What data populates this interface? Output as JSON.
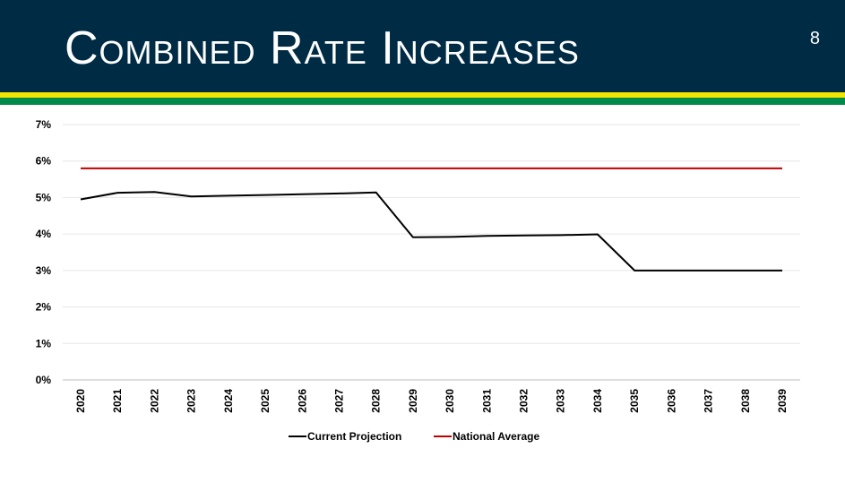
{
  "slide": {
    "title": "Combined Rate Increases",
    "number": "8"
  },
  "colors": {
    "header_bg": "#002b45",
    "stripe_yellow": "#f2e600",
    "stripe_green": "#008a4b",
    "current_projection": "#000000",
    "national_average": "#c00000",
    "grid": "#e6e6e6"
  },
  "chart_data": {
    "type": "line",
    "title": "",
    "xlabel": "",
    "ylabel": "",
    "ylim": [
      0,
      7
    ],
    "yticks": [
      "0%",
      "1%",
      "2%",
      "3%",
      "4%",
      "5%",
      "6%",
      "7%"
    ],
    "categories": [
      "2020",
      "2021",
      "2022",
      "2023",
      "2024",
      "2025",
      "2026",
      "2027",
      "2028",
      "2029",
      "2030",
      "2031",
      "2032",
      "2033",
      "2034",
      "2035",
      "2036",
      "2037",
      "2038",
      "2039"
    ],
    "series": [
      {
        "name": "Current Projection",
        "color": "#000000",
        "values": [
          4.95,
          5.13,
          5.15,
          5.03,
          5.05,
          5.07,
          5.09,
          5.11,
          5.14,
          3.91,
          3.92,
          3.95,
          3.96,
          3.97,
          3.99,
          3.0,
          3.0,
          3.0,
          3.0,
          3.0
        ]
      },
      {
        "name": "National Average",
        "color": "#c00000",
        "values": [
          5.8,
          5.8,
          5.8,
          5.8,
          5.8,
          5.8,
          5.8,
          5.8,
          5.8,
          5.8,
          5.8,
          5.8,
          5.8,
          5.8,
          5.8,
          5.8,
          5.8,
          5.8,
          5.8,
          5.8
        ]
      }
    ],
    "legend_position": "bottom-center"
  }
}
